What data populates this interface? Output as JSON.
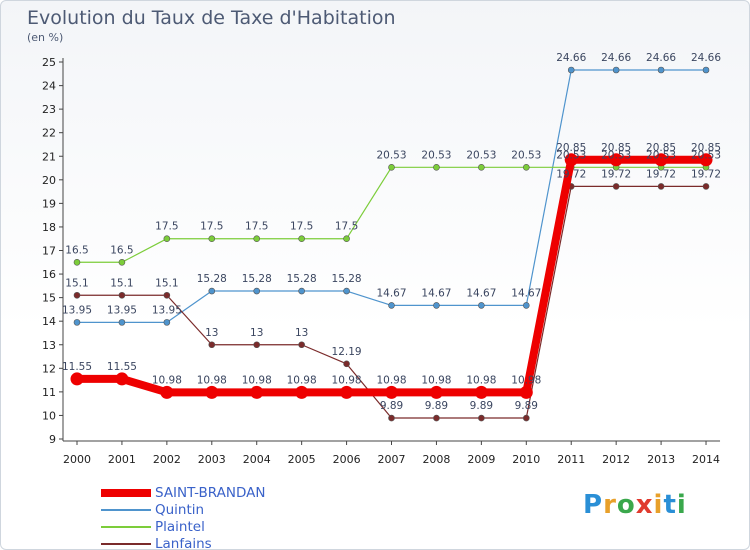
{
  "title": "Evolution du Taux de Taxe d'Habitation",
  "unit": "(en %)",
  "logo": "Proxiti",
  "chart_data": {
    "type": "line",
    "title": "Evolution du Taux de Taxe d'Habitation",
    "ylabel": "(en %)",
    "xlabel": "",
    "x": [
      "2000",
      "2001",
      "2002",
      "2003",
      "2004",
      "2005",
      "2006",
      "2007",
      "2008",
      "2009",
      "2010",
      "2011",
      "2012",
      "2013",
      "2014"
    ],
    "ylim": [
      9,
      25
    ],
    "yticks": [
      9,
      10,
      11,
      12,
      13,
      14,
      15,
      16,
      17,
      18,
      19,
      20,
      21,
      22,
      23,
      24,
      25
    ],
    "grid": false,
    "legend_position": "bottom-left",
    "series": [
      {
        "name": "SAINT-BRANDAN",
        "color": "#ee0000",
        "values": [
          11.55,
          11.55,
          10.98,
          10.98,
          10.98,
          10.98,
          10.98,
          10.98,
          10.98,
          10.98,
          10.98,
          20.85,
          20.85,
          20.85,
          20.85
        ],
        "labels": [
          "11.55",
          "11.55",
          "10.98",
          "10.98",
          "10.98",
          "10.98",
          "10.98",
          "10.98",
          "10.98",
          "10.98",
          "10.98",
          "20.85",
          "20.85",
          "20.85",
          "20.85"
        ]
      },
      {
        "name": "Quintin",
        "color": "#4f94cd",
        "values": [
          13.95,
          13.95,
          13.95,
          15.28,
          15.28,
          15.28,
          15.28,
          14.67,
          14.67,
          14.67,
          14.67,
          24.66,
          24.66,
          24.66,
          24.66
        ],
        "labels": [
          "13.95",
          "13.95",
          "13.95",
          "15.28",
          "15.28",
          "15.28",
          "15.28",
          "14.67",
          "14.67",
          "14.67",
          "14.67",
          "24.66",
          "24.66",
          "24.66",
          "24.66"
        ]
      },
      {
        "name": "Plaintel",
        "color": "#7ccd3a",
        "values": [
          16.5,
          16.5,
          17.5,
          17.5,
          17.5,
          17.5,
          17.5,
          20.53,
          20.53,
          20.53,
          20.53,
          20.53,
          20.53,
          20.53,
          20.53
        ],
        "labels": [
          "16.5",
          "16.5",
          "17.5",
          "17.5",
          "17.5",
          "17.5",
          "17.5",
          "20.53",
          "20.53",
          "20.53",
          "20.53",
          "20.53",
          "20.53",
          "20.53",
          "20.53"
        ]
      },
      {
        "name": "Lanfains",
        "color": "#7b2b2b",
        "values": [
          15.1,
          15.1,
          15.1,
          13,
          13,
          13,
          12.19,
          9.89,
          9.89,
          9.89,
          9.89,
          19.72,
          19.72,
          19.72,
          19.72
        ],
        "labels": [
          "15.1",
          "15.1",
          "15.1",
          "13",
          "13",
          "13",
          "12.19",
          "9.89",
          "9.89",
          "9.89",
          "9.89",
          "19.72",
          "19.72",
          "19.72",
          "19.72"
        ]
      }
    ]
  }
}
